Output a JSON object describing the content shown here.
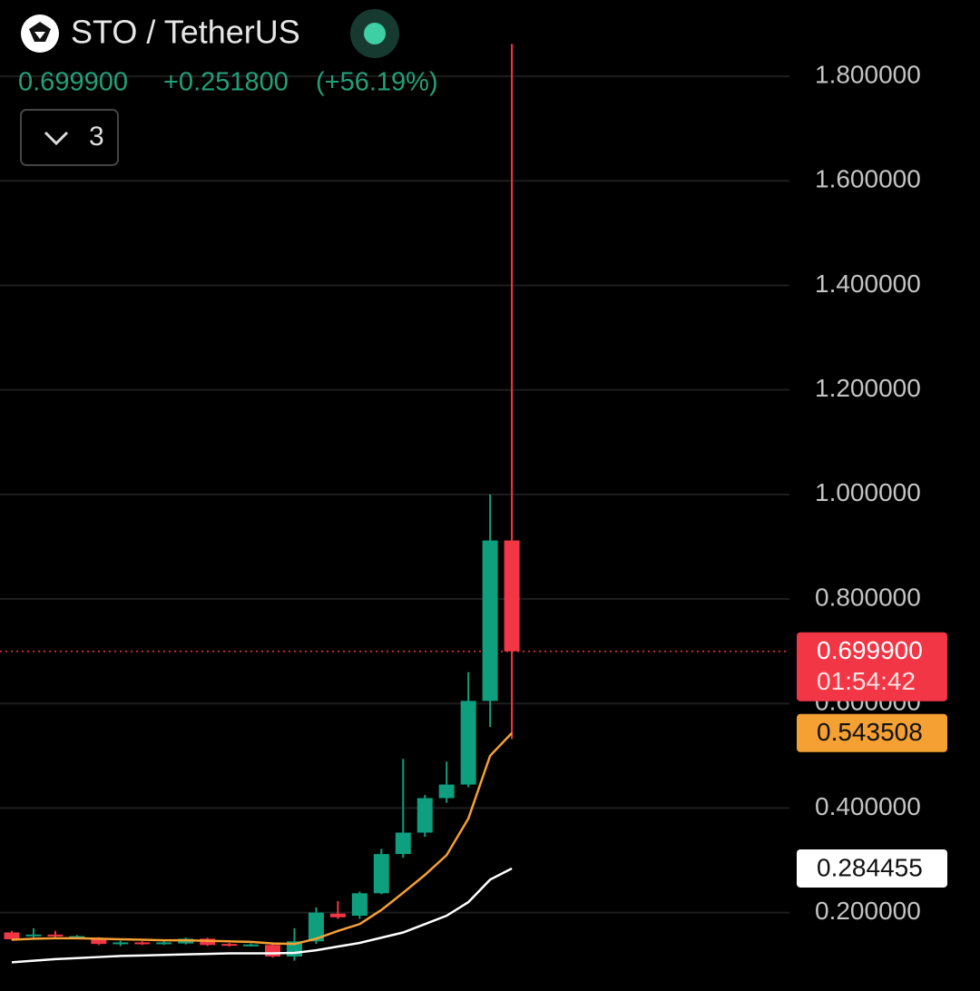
{
  "chart_data": {
    "type": "candlestick",
    "title": "STO / TetherUS",
    "price": "0.699900",
    "change": "+0.251800",
    "change_pct": "(+56.19%)",
    "indicator_count": "3",
    "ylim": [
      0.05,
      1.946
    ],
    "yticks": [
      {
        "value": 0.2,
        "label": "0.200000"
      },
      {
        "value": 0.4,
        "label": "0.400000"
      },
      {
        "value": 0.6,
        "label": "0.600000"
      },
      {
        "value": 0.8,
        "label": "0.800000"
      },
      {
        "value": 1.0,
        "label": "1.000000"
      },
      {
        "value": 1.2,
        "label": "1.200000"
      },
      {
        "value": 1.4,
        "label": "1.400000"
      },
      {
        "value": 1.6,
        "label": "1.600000"
      },
      {
        "value": 1.8,
        "label": "1.800000"
      }
    ],
    "grid": true,
    "up_color": "#0e9f7e",
    "down_color": "#f23645",
    "candles": {
      "open": [
        0.162,
        0.155,
        0.158,
        0.152,
        0.151,
        0.14,
        0.143,
        0.14,
        0.141,
        0.15,
        0.14,
        0.137,
        0.138,
        0.116,
        0.145,
        0.198,
        0.194,
        0.237,
        0.312,
        0.353,
        0.419,
        0.445,
        0.605,
        0.912
      ],
      "high": [
        0.165,
        0.17,
        0.165,
        0.157,
        0.153,
        0.146,
        0.145,
        0.145,
        0.152,
        0.152,
        0.142,
        0.141,
        0.14,
        0.17,
        0.21,
        0.222,
        0.24,
        0.322,
        0.494,
        0.425,
        0.489,
        0.66,
        1.0,
        1.862
      ],
      "low": [
        0.147,
        0.148,
        0.15,
        0.15,
        0.138,
        0.136,
        0.138,
        0.138,
        0.139,
        0.136,
        0.135,
        0.135,
        0.114,
        0.108,
        0.14,
        0.188,
        0.188,
        0.235,
        0.305,
        0.345,
        0.41,
        0.44,
        0.555,
        0.532
      ],
      "close": [
        0.149,
        0.158,
        0.155,
        0.155,
        0.14,
        0.143,
        0.14,
        0.143,
        0.15,
        0.138,
        0.137,
        0.139,
        0.116,
        0.145,
        0.2,
        0.191,
        0.237,
        0.312,
        0.353,
        0.419,
        0.445,
        0.605,
        0.912,
        0.6999
      ],
      "last_label": "0.699900",
      "timer": "01:54:42"
    },
    "moving_averages": [
      {
        "color": "#f5a032",
        "values": [
          0.148,
          0.15,
          0.151,
          0.151,
          0.15,
          0.149,
          0.148,
          0.147,
          0.147,
          0.146,
          0.145,
          0.144,
          0.141,
          0.14,
          0.15,
          0.165,
          0.178,
          0.205,
          0.238,
          0.272,
          0.31,
          0.38,
          0.5,
          0.543508
        ],
        "last_label": "0.543508"
      },
      {
        "color": "#ffffff",
        "values": [
          0.105,
          0.108,
          0.111,
          0.113,
          0.115,
          0.117,
          0.118,
          0.119,
          0.12,
          0.121,
          0.122,
          0.122,
          0.122,
          0.123,
          0.128,
          0.135,
          0.142,
          0.152,
          0.162,
          0.178,
          0.194,
          0.22,
          0.263,
          0.284455
        ],
        "last_label": "0.284455"
      }
    ]
  }
}
